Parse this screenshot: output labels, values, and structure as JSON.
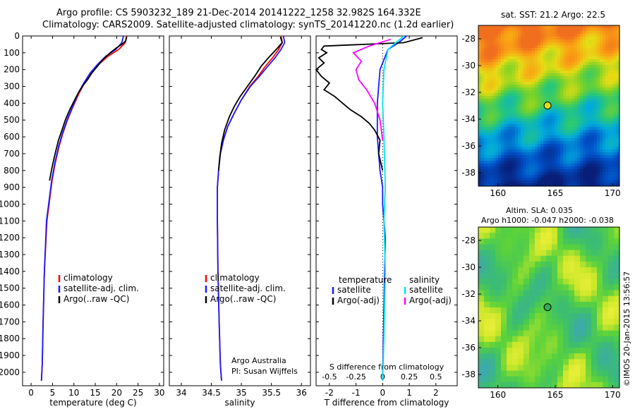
{
  "header": {
    "line1": "Argo profile: CS 5903232_189 21-Dec-2014 20141222_1258 32.982S 164.332E",
    "line2": "Climatology: CARS2009. Satellite-adjusted climatology: synTS_20141220.nc (1.2d earlier)"
  },
  "map_top": {
    "title": "sat. SST: 21.2 Argo: 22.5"
  },
  "map_bottom": {
    "title1": "Altim. SLA: 0.035",
    "title2": "Argo h1000: -0.047 h2000: -0.038"
  },
  "side_note": "©IMOS 20-Jan-2015 13:56:57",
  "colors": {
    "climatology": "#ff0000",
    "satellite": "#1a1aff",
    "argo": "#000000",
    "sat_salinity": "#00e5ee",
    "argo_salinity": "#ff00ff"
  },
  "chart_data": [
    {
      "type": "line",
      "xlabel": "temperature (deg C)",
      "ylabel": "",
      "xlim": [
        -2,
        31
      ],
      "ylim": [
        2080,
        0
      ],
      "x_ticks": [
        "0",
        "5",
        "10",
        "15",
        "20",
        "25",
        "30"
      ],
      "y_ticks": [
        "0",
        "100",
        "200",
        "300",
        "400",
        "500",
        "600",
        "700",
        "800",
        "900",
        "1000",
        "1100",
        "1200",
        "1300",
        "1400",
        "1500",
        "1600",
        "1700",
        "1800",
        "1900",
        "2000"
      ],
      "legend": [
        "climatology",
        "satellite-adj. clim.",
        "Argo(..raw -QC)"
      ],
      "legend_position": "bottom-center",
      "series": [
        {
          "name": "climatology",
          "color": "#ff0000",
          "x": [
            22.4,
            22.0,
            20.5,
            18.0,
            15.8,
            14.0,
            12.5,
            11.2,
            9.8,
            8.5,
            7.4,
            6.5,
            5.6,
            4.9,
            3.7,
            3.1,
            2.8,
            2.6,
            2.4
          ],
          "y": [
            0,
            40,
            80,
            120,
            170,
            220,
            280,
            340,
            420,
            500,
            580,
            660,
            760,
            860,
            1100,
            1400,
            1700,
            1950,
            2050
          ]
        },
        {
          "name": "satellite-adj. clim.",
          "color": "#1a1aff",
          "x": [
            21.6,
            21.2,
            19.8,
            17.5,
            15.5,
            13.8,
            12.3,
            11.0,
            9.7,
            8.4,
            7.3,
            6.4,
            5.5,
            4.8,
            3.6,
            3.1,
            2.8,
            2.6,
            2.4
          ],
          "y": [
            0,
            40,
            80,
            120,
            170,
            220,
            280,
            340,
            420,
            500,
            580,
            660,
            760,
            860,
            1100,
            1400,
            1700,
            1950,
            2050
          ]
        },
        {
          "name": "Argo(..raw -QC)",
          "color": "#000000",
          "x": [
            22.3,
            22.1,
            21.2,
            20.0,
            18.5,
            16.8,
            15.5,
            14.2,
            13.2,
            12.0,
            11.0,
            10.2,
            9.0,
            8.0,
            7.2,
            6.4,
            5.6,
            4.9,
            4.3
          ],
          "y": [
            5,
            30,
            50,
            70,
            100,
            140,
            180,
            220,
            260,
            300,
            340,
            380,
            440,
            500,
            560,
            620,
            700,
            780,
            860
          ]
        }
      ]
    },
    {
      "type": "line",
      "xlabel": "salinity",
      "xlim": [
        33.8,
        36.15
      ],
      "ylim": [
        2080,
        0
      ],
      "x_ticks": [
        "34",
        "34.5",
        "35",
        "35.5",
        "36"
      ],
      "legend": [
        "climatology",
        "satellite-adj. clim.",
        "Argo(..raw -QC)"
      ],
      "legend_position": "bottom-center",
      "annotation": [
        "Argo Australia",
        "PI: Susan Wijffels"
      ],
      "series": [
        {
          "name": "climatology",
          "color": "#ff0000",
          "x": [
            35.66,
            35.68,
            35.62,
            35.52,
            35.4,
            35.28,
            35.14,
            35.0,
            34.88,
            34.77,
            34.7,
            34.65,
            34.62,
            34.6,
            34.6,
            34.61,
            34.63,
            34.65,
            34.67
          ],
          "y": [
            0,
            40,
            80,
            130,
            180,
            240,
            300,
            380,
            460,
            540,
            620,
            700,
            800,
            900,
            1100,
            1400,
            1700,
            1950,
            2050
          ]
        },
        {
          "name": "satellite-adj. clim.",
          "color": "#1a1aff",
          "x": [
            35.7,
            35.72,
            35.66,
            35.56,
            35.44,
            35.3,
            35.15,
            35.0,
            34.88,
            34.77,
            34.7,
            34.65,
            34.62,
            34.6,
            34.6,
            34.61,
            34.63,
            34.65,
            34.67
          ],
          "y": [
            0,
            40,
            80,
            130,
            180,
            240,
            300,
            380,
            460,
            540,
            620,
            700,
            800,
            900,
            1100,
            1400,
            1700,
            1950,
            2050
          ]
        },
        {
          "name": "Argo(..raw -QC)",
          "color": "#000000",
          "x": [
            35.65,
            35.68,
            35.58,
            35.45,
            35.33,
            35.22,
            35.1,
            34.98,
            34.88,
            34.8,
            34.72,
            34.67,
            34.64,
            34.62
          ],
          "y": [
            5,
            40,
            80,
            130,
            180,
            240,
            300,
            360,
            420,
            480,
            560,
            640,
            720,
            800
          ]
        }
      ]
    },
    {
      "type": "line",
      "xlabel": "T difference from climatology",
      "top_label": "S difference from climatology",
      "xlim": [
        -2.5,
        2.8
      ],
      "ylim": [
        2080,
        0
      ],
      "x_ticks": [
        "-2",
        "-1",
        "0",
        "1",
        "2"
      ],
      "top_ticks": [
        "-0.5",
        "-0.25",
        "0",
        "0.25",
        "0.5"
      ],
      "legend_header": [
        "temperature",
        "salinity"
      ],
      "legend": [
        "satellite",
        "Argo(-adj)",
        "satellite",
        "Argo(-adj)"
      ],
      "legend_position": "bottom-center",
      "series": [
        {
          "name": "satellite",
          "color": "#1a1aff",
          "x": [
            0.9,
            0.6,
            0.2,
            -0.1,
            -0.2,
            -0.2,
            -0.1,
            0.0,
            0.0,
            0.1,
            0.05,
            0.0
          ],
          "y": [
            0,
            40,
            80,
            200,
            400,
            600,
            800,
            900,
            1000,
            1200,
            1600,
            2050
          ]
        },
        {
          "name": "Argo(-adj)",
          "color": "#000000",
          "x": [
            1.5,
            0.8,
            -2.2,
            -2.3,
            -2.1,
            -2.4,
            -2.2,
            -2.5,
            -2.3,
            -2.0,
            -2.2,
            -1.8,
            -1.5,
            -1.2,
            -0.8,
            -0.5,
            -0.3,
            -0.1,
            -0.15,
            0.0
          ],
          "y": [
            10,
            40,
            60,
            80,
            100,
            130,
            160,
            200,
            240,
            280,
            320,
            360,
            400,
            440,
            480,
            520,
            560,
            620,
            700,
            800
          ]
        },
        {
          "name": "satellite",
          "color": "#00e5ee",
          "x": [
            0.8,
            0.5,
            0.2,
            0.05,
            0.0,
            0.05,
            0.1,
            0.05,
            0.1,
            0.05,
            0.0
          ],
          "y": [
            0,
            40,
            80,
            200,
            400,
            600,
            900,
            1100,
            1400,
            1800,
            2050
          ]
        },
        {
          "name": "Argo(-adj)",
          "color": "#ff00ff",
          "x": [
            0.3,
            -0.5,
            -1.1,
            -0.8,
            -1.0,
            -0.9,
            -0.6,
            -0.3,
            -0.1,
            0.0
          ],
          "y": [
            20,
            60,
            100,
            150,
            200,
            260,
            320,
            400,
            500,
            620
          ]
        }
      ]
    }
  ],
  "map_axes": {
    "x_ticks": [
      "160",
      "165",
      "170"
    ],
    "y_ticks": [
      "-28",
      "-30",
      "-32",
      "-34",
      "-36",
      "-38"
    ],
    "float_position": {
      "lon": 164.332,
      "lat": -32.982
    }
  }
}
